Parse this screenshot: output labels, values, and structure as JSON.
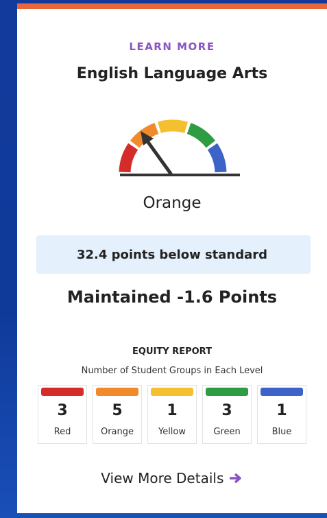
{
  "card": {
    "link": "LEARN MORE",
    "title": "English Language Arts",
    "level": "Orange",
    "status": "32.4 points below standard",
    "change": "Maintained -1.6 Points",
    "equity": {
      "title": "EQUITY REPORT",
      "subtitle": "Number of Student Groups in Each Level",
      "levels": [
        {
          "count": 3,
          "label": "Red",
          "color": "#d42b2b"
        },
        {
          "count": 5,
          "label": "Orange",
          "color": "#f08a2a"
        },
        {
          "count": 1,
          "label": "Yellow",
          "color": "#f5c02f"
        },
        {
          "count": 3,
          "label": "Green",
          "color": "#2f9c44"
        },
        {
          "count": 1,
          "label": "Blue",
          "color": "#3d63c9"
        }
      ]
    },
    "details": "View More Details"
  }
}
